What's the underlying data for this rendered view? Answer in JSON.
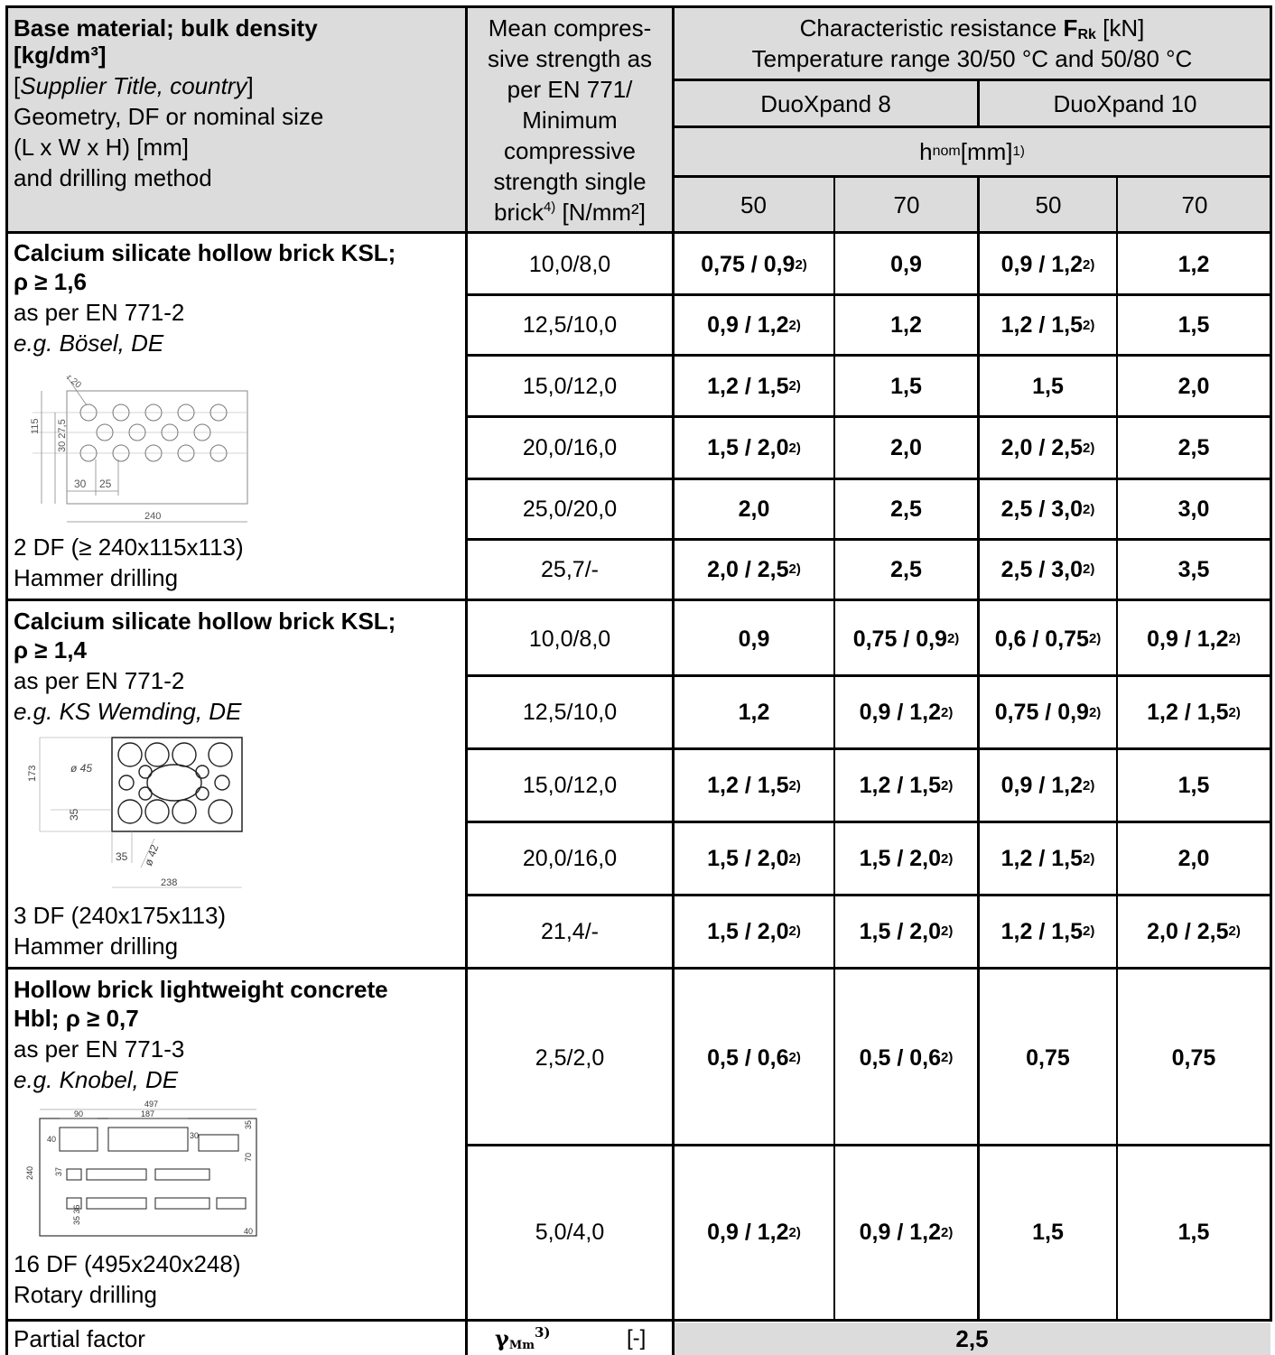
{
  "header": {
    "col1": {
      "title_line1": "Base material; bulk density",
      "title_line2": "[kg/dm³]",
      "supplier_open": "[",
      "supplier_title": "Supplier Title, country",
      "supplier_close": "]",
      "geometry_line1": "Geometry, DF or nominal size",
      "geometry_line2": "(L x W x H) [mm]",
      "drilling_line": "and drilling method"
    },
    "col2": {
      "line1": "Mean compres-",
      "line2": "sive strength as",
      "line3": "per EN 771/",
      "line4": "Minimum",
      "line5": "compressive",
      "line6": "strength single",
      "line7_a": "brick",
      "line7_sup": "4)",
      "line7_b": " [N/mm²]"
    },
    "resistance": {
      "line1_a": "Characteristic resistance ",
      "line1_F": "F",
      "line1_sub": "Rk",
      "line1_b": " [kN]",
      "line2": "Temperature range 30/50 °C and 50/80 °C"
    },
    "products": [
      "DuoXpand 8",
      "DuoXpand 10"
    ],
    "hnom": {
      "h": "h",
      "sub": "nom",
      "unit": " [mm]",
      "sup": "1)"
    },
    "depths": [
      "50",
      "70",
      "50",
      "70"
    ]
  },
  "groups": [
    {
      "title_line1": "Calcium silicate hollow brick KSL;",
      "title_line2": "ρ ≥ 1,6",
      "standard": "as per EN 771-2",
      "example": "e.g. Bösel, DE",
      "size": "2 DF (≥ 240x115x113)",
      "drilling": "Hammer drilling",
      "drawing_labels": {
        "r": "r 20",
        "h1": "115",
        "h2": "30 27,5",
        "w1": "30",
        "w2": "25",
        "w3": "240"
      },
      "rows": [
        {
          "strength": "10,0/8,0",
          "cells": [
            {
              "v": "0,75 / 0,9",
              "s": "2)"
            },
            {
              "v": "0,9",
              "s": ""
            },
            {
              "v": "0,9 / 1,2",
              "s": "2)"
            },
            {
              "v": "1,2",
              "s": ""
            }
          ]
        },
        {
          "strength": "12,5/10,0",
          "cells": [
            {
              "v": "0,9 / 1,2",
              "s": "2)"
            },
            {
              "v": "1,2",
              "s": ""
            },
            {
              "v": "1,2 / 1,5",
              "s": "2)"
            },
            {
              "v": "1,5",
              "s": ""
            }
          ]
        },
        {
          "strength": "15,0/12,0",
          "cells": [
            {
              "v": "1,2 / 1,5",
              "s": "2)"
            },
            {
              "v": "1,5",
              "s": ""
            },
            {
              "v": "1,5",
              "s": ""
            },
            {
              "v": "2,0",
              "s": ""
            }
          ]
        },
        {
          "strength": "20,0/16,0",
          "cells": [
            {
              "v": "1,5 / 2,0",
              "s": "2)"
            },
            {
              "v": "2,0",
              "s": ""
            },
            {
              "v": "2,0 / 2,5",
              "s": "2)"
            },
            {
              "v": "2,5",
              "s": ""
            }
          ]
        },
        {
          "strength": "25,0/20,0",
          "cells": [
            {
              "v": "2,0",
              "s": ""
            },
            {
              "v": "2,5",
              "s": ""
            },
            {
              "v": "2,5 / 3,0",
              "s": "2)"
            },
            {
              "v": "3,0",
              "s": ""
            }
          ]
        },
        {
          "strength": "25,7/-",
          "cells": [
            {
              "v": "2,0 / 2,5",
              "s": "2)"
            },
            {
              "v": "2,5",
              "s": ""
            },
            {
              "v": "2,5 / 3,0",
              "s": "2)"
            },
            {
              "v": "3,5",
              "s": ""
            }
          ]
        }
      ]
    },
    {
      "title_line1": "Calcium silicate hollow brick KSL;",
      "title_line2": "ρ ≥ 1,4",
      "standard": "as per EN 771-2",
      "example": "e.g. KS Wemding, DE",
      "size": "3 DF (240x175x113)",
      "drilling": "Hammer drilling",
      "drawing_labels": {
        "h": "173",
        "d1": "ø 45",
        "a": "35",
        "b": "35",
        "d2": "ø 42",
        "w": "238"
      },
      "rows": [
        {
          "strength": "10,0/8,0",
          "cells": [
            {
              "v": "0,9",
              "s": ""
            },
            {
              "v": "0,75 / 0,9",
              "s": "2)"
            },
            {
              "v": "0,6 / 0,75",
              "s": "2)"
            },
            {
              "v": "0,9 / 1,2",
              "s": "2)"
            }
          ]
        },
        {
          "strength": "12,5/10,0",
          "cells": [
            {
              "v": "1,2",
              "s": ""
            },
            {
              "v": "0,9 / 1,2",
              "s": "2)"
            },
            {
              "v": "0,75 / 0,9",
              "s": "2)"
            },
            {
              "v": "1,2 / 1,5",
              "s": "2)"
            }
          ]
        },
        {
          "strength": "15,0/12,0",
          "cells": [
            {
              "v": "1,2 / 1,5",
              "s": "2)"
            },
            {
              "v": "1,2 / 1,5",
              "s": "2)"
            },
            {
              "v": "0,9 / 1,2",
              "s": "2)"
            },
            {
              "v": "1,5",
              "s": ""
            }
          ]
        },
        {
          "strength": "20,0/16,0",
          "cells": [
            {
              "v": "1,5 / 2,0",
              "s": "2)"
            },
            {
              "v": "1,5 / 2,0",
              "s": "2)"
            },
            {
              "v": "1,2 / 1,5",
              "s": "2)"
            },
            {
              "v": "2,0",
              "s": ""
            }
          ]
        },
        {
          "strength": "21,4/-",
          "cells": [
            {
              "v": "1,5 / 2,0",
              "s": "2)"
            },
            {
              "v": "1,5 / 2,0",
              "s": "2)"
            },
            {
              "v": "1,2 / 1,5",
              "s": "2)"
            },
            {
              "v": "2,0 / 2,5",
              "s": "2)"
            }
          ]
        }
      ]
    },
    {
      "title_line1": "Hollow brick lightweight concrete",
      "title_line2": "Hbl; ρ ≥ 0,7",
      "standard": "as per EN 771-3",
      "example": "e.g. Knobel, DE",
      "size": "16 DF (495x240x248)",
      "drilling": "Rotary drilling",
      "drawing_labels": {
        "w": "497",
        "a": "90",
        "b": "187",
        "c": "40",
        "d": "30",
        "e": "35",
        "f": "70",
        "g": "240",
        "h": "37",
        "i": "35 36",
        "j": "40"
      },
      "rows": [
        {
          "strength": "2,5/2,0",
          "cells": [
            {
              "v": "0,5 / 0,6",
              "s": "2)"
            },
            {
              "v": "0,5 / 0,6",
              "s": "2)"
            },
            {
              "v": "0,75",
              "s": ""
            },
            {
              "v": "0,75",
              "s": ""
            }
          ]
        },
        {
          "strength": "5,0/4,0",
          "cells": [
            {
              "v": "0,9 / 1,2",
              "s": "2)"
            },
            {
              "v": "0,9 / 1,2",
              "s": "2)"
            },
            {
              "v": "1,5",
              "s": ""
            },
            {
              "v": "1,5",
              "s": ""
            }
          ]
        }
      ]
    }
  ],
  "footer": {
    "label": "Partial factor",
    "gamma": "γ",
    "gamma_sub": "Mm",
    "gamma_sup": "3)",
    "unit": "[-]",
    "value": "2,5"
  }
}
